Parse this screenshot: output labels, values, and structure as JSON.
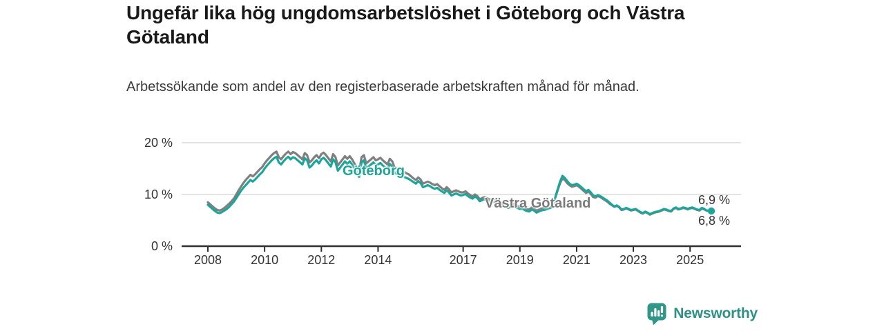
{
  "header": {
    "title": "Ungefär lika hög ungdomsarbetslöshet i Göteborg och Västra Götaland",
    "subtitle": "Arbetssökande som andel av den registerbaserade arbetskraften månad för månad."
  },
  "footer": {
    "brand": "Newsworthy",
    "brand_color": "#2d9184"
  },
  "chart_data": {
    "type": "line",
    "title": "Ungefär lika hög ungdomsarbetslöshet i Göteborg och Västra Götaland",
    "subtitle": "Arbetssökande som andel av den registerbaserade arbetskraften månad för månad.",
    "x_unit": "month",
    "x_start": "2008-01",
    "x_end": "2025-10",
    "x_tick_labels": [
      "2008",
      "2010",
      "2012",
      "2014",
      "2017",
      "2019",
      "2021",
      "2023",
      "2025"
    ],
    "y_tick_labels": [
      "0 %",
      "10 %",
      "20 %"
    ],
    "y_tick_values": [
      0,
      10,
      20
    ],
    "ylim": [
      0,
      21
    ],
    "grid": "horizontal",
    "legend": "inline-labels",
    "colors": {
      "goteborg": "#1da59a",
      "vastra_gotaland": "#7f7f7f",
      "gridline": "#dcdcdc",
      "axis": "#2e2e2e"
    },
    "series": [
      {
        "name": "Göteborg",
        "color": "#1da59a",
        "end_label": "6,8 %",
        "end_value": 6.8,
        "values": [
          8.0,
          7.6,
          7.2,
          6.8,
          6.5,
          6.4,
          6.6,
          6.9,
          7.2,
          7.6,
          8.1,
          8.6,
          9.3,
          10.0,
          10.7,
          11.3,
          11.8,
          12.3,
          12.8,
          12.5,
          12.9,
          13.4,
          13.9,
          14.3,
          15.0,
          15.6,
          16.1,
          16.6,
          17.0,
          17.3,
          16.2,
          15.8,
          16.4,
          16.9,
          17.3,
          16.8,
          17.2,
          17.0,
          16.6,
          16.2,
          15.8,
          17.0,
          16.6,
          15.2,
          15.6,
          16.2,
          16.6,
          16.0,
          16.8,
          17.1,
          16.6,
          16.0,
          15.4,
          16.8,
          16.2,
          14.6,
          15.2,
          15.8,
          16.4,
          15.9,
          16.4,
          15.8,
          15.0,
          14.2,
          13.4,
          16.2,
          16.6,
          15.0,
          15.4,
          15.8,
          16.2,
          15.6,
          15.8,
          16.1,
          15.6,
          15.2,
          14.8,
          15.9,
          15.4,
          14.2,
          14.0,
          13.8,
          13.6,
          13.4,
          13.2,
          13.0,
          12.7,
          12.4,
          12.1,
          12.6,
          12.2,
          11.4,
          11.6,
          11.8,
          11.6,
          11.3,
          11.1,
          11.3,
          10.9,
          10.6,
          10.3,
          10.8,
          10.4,
          9.8,
          10.0,
          10.2,
          10.0,
          9.8,
          9.9,
          10.1,
          9.7,
          9.4,
          9.2,
          9.6,
          9.3,
          8.7,
          8.9,
          9.1,
          8.9,
          8.7,
          8.5,
          8.6,
          8.3,
          8.0,
          7.8,
          8.2,
          7.9,
          7.4,
          7.6,
          7.8,
          7.6,
          7.4,
          7.2,
          7.3,
          7.0,
          6.8,
          6.7,
          7.1,
          6.9,
          6.5,
          6.7,
          6.9,
          7.0,
          7.1,
          7.3,
          7.4,
          8.0,
          9.5,
          11.0,
          12.5,
          13.6,
          13.2,
          12.6,
          12.1,
          11.8,
          11.9,
          12.1,
          11.8,
          11.4,
          11.0,
          10.6,
          10.9,
          10.4,
          9.8,
          9.6,
          9.9,
          9.7,
          9.4,
          9.1,
          8.8,
          8.4,
          8.0,
          7.7,
          7.9,
          7.6,
          7.1,
          7.2,
          7.4,
          7.2,
          7.0,
          7.1,
          7.2,
          6.9,
          6.6,
          6.4,
          6.7,
          6.5,
          6.2,
          6.4,
          6.6,
          6.7,
          6.8,
          7.0,
          7.2,
          7.1,
          6.9,
          6.8,
          7.3,
          7.5,
          7.2,
          7.3,
          7.5,
          7.4,
          7.2,
          7.4,
          7.5,
          7.3,
          7.1,
          7.0,
          7.4,
          7.2,
          6.9,
          6.8,
          6.8
        ]
      },
      {
        "name": "Västra Götaland",
        "color": "#7f7f7f",
        "end_label": "6,9 %",
        "end_value": 6.9,
        "values": [
          8.5,
          8.1,
          7.7,
          7.3,
          7.0,
          6.9,
          7.1,
          7.4,
          7.8,
          8.2,
          8.7,
          9.2,
          10.0,
          10.8,
          11.5,
          12.2,
          12.8,
          13.3,
          13.8,
          13.5,
          13.9,
          14.4,
          14.9,
          15.3,
          16.0,
          16.6,
          17.1,
          17.6,
          18.0,
          18.3,
          17.2,
          16.8,
          17.4,
          17.9,
          18.3,
          17.8,
          18.2,
          18.0,
          17.6,
          17.2,
          16.8,
          18.0,
          17.6,
          16.2,
          16.6,
          17.2,
          17.6,
          17.0,
          17.8,
          18.1,
          17.6,
          17.0,
          16.4,
          17.8,
          17.2,
          15.6,
          16.2,
          16.8,
          17.4,
          16.9,
          17.4,
          16.8,
          16.0,
          15.2,
          14.4,
          17.2,
          17.6,
          16.0,
          16.4,
          16.8,
          17.2,
          16.6,
          16.8,
          17.1,
          16.6,
          16.2,
          15.8,
          16.9,
          16.4,
          15.2,
          15.0,
          14.8,
          14.6,
          14.4,
          14.1,
          13.9,
          13.5,
          13.1,
          12.8,
          13.3,
          12.9,
          12.1,
          12.3,
          12.5,
          12.3,
          12.0,
          11.8,
          12.0,
          11.6,
          11.2,
          10.9,
          11.4,
          11.0,
          10.4,
          10.6,
          10.8,
          10.6,
          10.4,
          10.4,
          10.6,
          10.2,
          9.9,
          9.6,
          10.0,
          9.7,
          9.1,
          9.3,
          9.5,
          9.3,
          9.1,
          8.9,
          9.0,
          8.7,
          8.4,
          8.2,
          8.6,
          8.3,
          7.8,
          8.0,
          8.2,
          8.0,
          7.8,
          7.6,
          7.7,
          7.4,
          7.2,
          7.1,
          7.5,
          7.3,
          6.9,
          7.1,
          7.3,
          7.4,
          7.5,
          7.6,
          7.7,
          8.2,
          9.4,
          10.8,
          12.2,
          13.1,
          12.8,
          12.2,
          11.8,
          11.5,
          11.6,
          11.8,
          11.5,
          11.1,
          10.7,
          10.3,
          10.6,
          10.1,
          9.5,
          9.4,
          9.7,
          9.5,
          9.2,
          8.9,
          8.6,
          8.2,
          7.9,
          7.6,
          7.8,
          7.5,
          7.0,
          7.1,
          7.3,
          7.1,
          6.9,
          7.0,
          7.1,
          6.8,
          6.5,
          6.3,
          6.6,
          6.4,
          6.1,
          6.3,
          6.5,
          6.6,
          6.7,
          6.9,
          7.1,
          7.0,
          6.8,
          6.7,
          7.2,
          7.4,
          7.1,
          7.2,
          7.4,
          7.3,
          7.1,
          7.3,
          7.4,
          7.2,
          7.0,
          6.9,
          7.3,
          7.1,
          6.9,
          6.9,
          6.9
        ]
      }
    ]
  }
}
